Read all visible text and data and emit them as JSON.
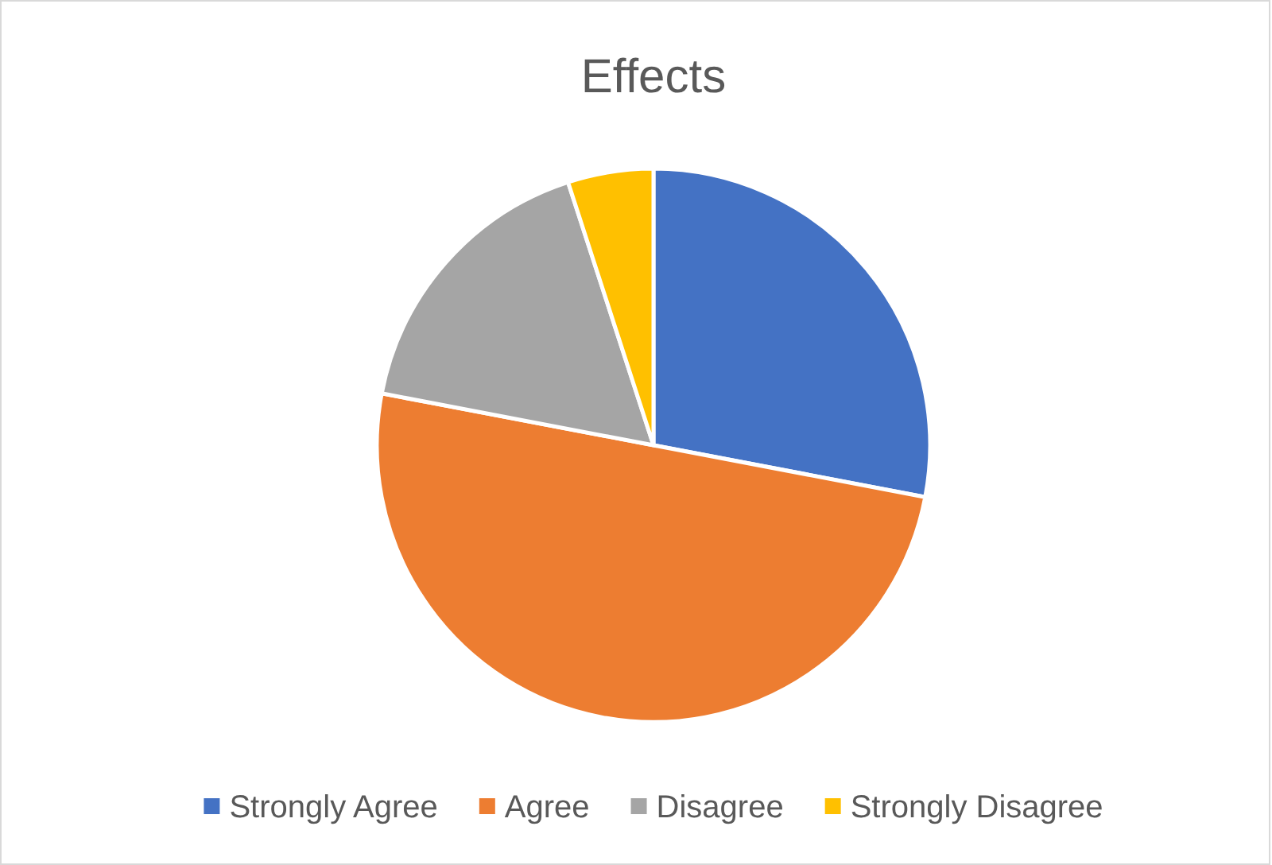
{
  "chart_data": {
    "type": "pie",
    "title": "Effects",
    "categories": [
      "Strongly Agree",
      "Agree",
      "Disagree",
      "Strongly Disagree"
    ],
    "values": [
      28,
      50,
      17,
      5
    ],
    "colors": [
      "#4472c4",
      "#ed7d31",
      "#a5a5a5",
      "#ffc000"
    ],
    "legend": "bottom"
  }
}
